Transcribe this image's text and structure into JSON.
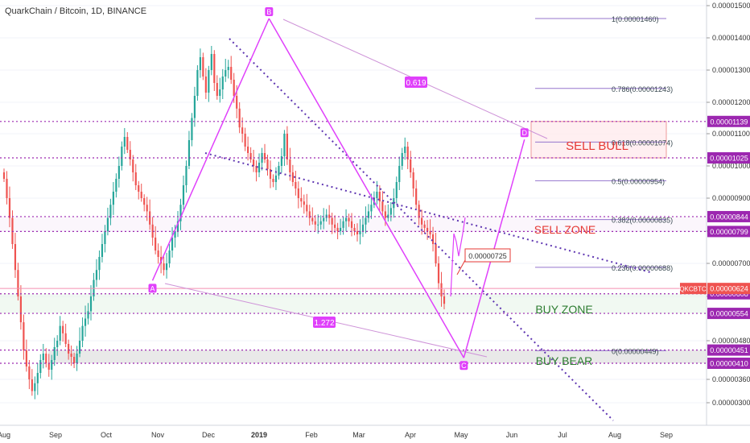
{
  "header": {
    "title": "QuarkChain / Bitcoin, 1D, BINANCE"
  },
  "colors": {
    "up": "#26a69a",
    "down": "#ef5350",
    "pattern": "#e040fb",
    "channel": "#5e35b1",
    "level": "#9c27b0",
    "fib": "#9575cd",
    "sell": "#e53935",
    "buy": "#2e7d32",
    "price_tag": "#ef5350",
    "level_tag": "#9c27b0",
    "grid": "#f0f3fa"
  },
  "chart_data": {
    "type": "candlestick",
    "symbol": "QKCBTC",
    "y_axis": {
      "ticks": [
        "0.00001500",
        "0.00001400",
        "0.00001300",
        "0.00001200",
        "0.00001100",
        "0.00001000",
        "0.00000900",
        "0.00000800",
        "0.00000700",
        "0.00000600",
        "0.00000480",
        "0.00000360",
        "0.00000300"
      ],
      "tick_values": [
        1500,
        1400,
        1300,
        1200,
        1100,
        1000,
        900,
        800,
        700,
        600,
        480,
        360,
        300
      ],
      "unit_scale": "1e-8 BTC"
    },
    "x_axis": {
      "ticks": [
        "Aug",
        "Sep",
        "Oct",
        "Nov",
        "Dec",
        "2019",
        "Feb",
        "Mar",
        "Apr",
        "May",
        "Jun",
        "Jul",
        "Aug",
        "Sep"
      ]
    },
    "price_tag": {
      "label": "QKCBTC",
      "value": "0.00000624",
      "v": 624
    },
    "horizontal_levels": [
      {
        "value": "0.00001139",
        "v": 1139
      },
      {
        "value": "0.00001025",
        "v": 1025
      },
      {
        "value": "0.00000844",
        "v": 844
      },
      {
        "value": "0.00000799",
        "v": 799
      },
      {
        "value": "0.00000608",
        "v": 608
      },
      {
        "value": "0.00000554",
        "v": 554
      },
      {
        "value": "0.00000451",
        "v": 451
      },
      {
        "value": "0.00000410",
        "v": 410
      }
    ],
    "fib_levels": [
      {
        "label": "1(0.00001460)",
        "v": 1460
      },
      {
        "label": "0.786(0.00001243)",
        "v": 1243
      },
      {
        "label": "0.618(0.00001074)",
        "v": 1074
      },
      {
        "label": "0.5(0.00000954)",
        "v": 954
      },
      {
        "label": "0.382(0.00000835)",
        "v": 835
      },
      {
        "label": "0.236(0.00000688)",
        "v": 688
      },
      {
        "label": "0(0.00000449)",
        "v": 449
      }
    ],
    "pattern_points": [
      {
        "label": "A",
        "date": "2018-11-02",
        "v": 648
      },
      {
        "label": "B",
        "date": "2019-01-14",
        "v": 1460
      },
      {
        "label": "C",
        "date": "2019-05-16",
        "v": 427
      },
      {
        "label": "D",
        "date": "2019-06-23",
        "v": 1082
      }
    ],
    "ratios": [
      {
        "label": "0.619"
      },
      {
        "label": "1.272"
      }
    ],
    "zones": [
      {
        "label": "SELL BULL"
      },
      {
        "label": "SELL ZONE"
      },
      {
        "label": "BUY ZONE"
      },
      {
        "label": "BUY BEAR"
      }
    ],
    "callout": {
      "label": "0.00000725",
      "v": 725
    },
    "candles_close": [
      960,
      900,
      840,
      760,
      680,
      600,
      530,
      450,
      400,
      360,
      330,
      350,
      380,
      420,
      440,
      410,
      390,
      420,
      460,
      480,
      520,
      500,
      470,
      440,
      430,
      410,
      440,
      480,
      520,
      540,
      560,
      600,
      650,
      680,
      720,
      760,
      800,
      840,
      880,
      920,
      960,
      1000,
      1060,
      1090,
      1050,
      1020,
      980,
      940,
      920,
      900,
      880,
      860,
      820,
      780,
      740,
      720,
      700,
      680,
      700,
      740,
      780,
      800,
      830,
      880,
      940,
      1000,
      1080,
      1150,
      1220,
      1300,
      1340,
      1280,
      1230,
      1300,
      1350,
      1260,
      1220,
      1240,
      1280,
      1300,
      1310,
      1270,
      1220,
      1180,
      1120,
      1100,
      1060,
      1040,
      1020,
      1000,
      980,
      1010,
      1040,
      1020,
      990,
      960,
      950,
      970,
      1000,
      1030,
      1100,
      1020,
      980,
      950,
      930,
      900,
      890,
      880,
      860,
      840,
      830,
      820,
      820,
      830,
      840,
      850,
      840,
      820,
      810,
      800,
      810,
      830,
      840,
      830,
      810,
      800,
      790,
      800,
      820,
      840,
      860,
      880,
      900,
      920,
      890,
      860,
      840,
      850,
      870,
      900,
      950,
      1000,
      1040,
      1060,
      1020,
      980,
      930,
      880,
      840,
      820,
      810,
      800,
      790,
      760,
      700,
      640,
      600,
      580
    ]
  }
}
